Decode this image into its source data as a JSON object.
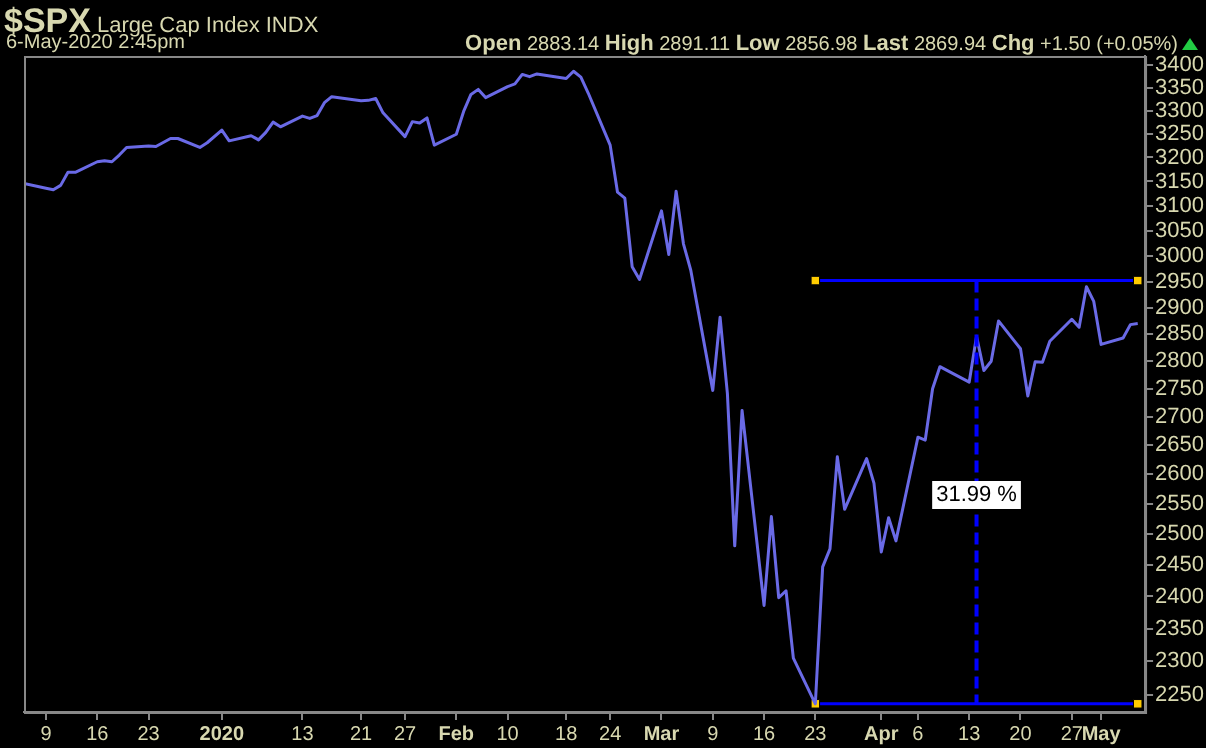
{
  "chart_data": {
    "type": "line",
    "title": "$SPX Large Cap Index INDX",
    "log": true,
    "grid": false,
    "legend": false,
    "x": [
      "2019-12-06",
      "2019-12-09",
      "2019-12-10",
      "2019-12-11",
      "2019-12-12",
      "2019-12-13",
      "2019-12-16",
      "2019-12-17",
      "2019-12-18",
      "2019-12-19",
      "2019-12-20",
      "2019-12-23",
      "2019-12-24",
      "2019-12-26",
      "2019-12-27",
      "2019-12-30",
      "2019-12-31",
      "2020-01-02",
      "2020-01-03",
      "2020-01-06",
      "2020-01-07",
      "2020-01-08",
      "2020-01-09",
      "2020-01-10",
      "2020-01-13",
      "2020-01-14",
      "2020-01-15",
      "2020-01-16",
      "2020-01-17",
      "2020-01-21",
      "2020-01-22",
      "2020-01-23",
      "2020-01-24",
      "2020-01-27",
      "2020-01-28",
      "2020-01-29",
      "2020-01-30",
      "2020-01-31",
      "2020-02-03",
      "2020-02-04",
      "2020-02-05",
      "2020-02-06",
      "2020-02-07",
      "2020-02-10",
      "2020-02-11",
      "2020-02-12",
      "2020-02-13",
      "2020-02-14",
      "2020-02-18",
      "2020-02-19",
      "2020-02-20",
      "2020-02-21",
      "2020-02-24",
      "2020-02-25",
      "2020-02-26",
      "2020-02-27",
      "2020-02-28",
      "2020-03-02",
      "2020-03-03",
      "2020-03-04",
      "2020-03-05",
      "2020-03-06",
      "2020-03-09",
      "2020-03-10",
      "2020-03-11",
      "2020-03-12",
      "2020-03-13",
      "2020-03-16",
      "2020-03-17",
      "2020-03-18",
      "2020-03-19",
      "2020-03-20",
      "2020-03-23",
      "2020-03-24",
      "2020-03-25",
      "2020-03-26",
      "2020-03-27",
      "2020-03-30",
      "2020-03-31",
      "2020-04-01",
      "2020-04-02",
      "2020-04-03",
      "2020-04-06",
      "2020-04-07",
      "2020-04-08",
      "2020-04-09",
      "2020-04-13",
      "2020-04-14",
      "2020-04-15",
      "2020-04-16",
      "2020-04-17",
      "2020-04-20",
      "2020-04-21",
      "2020-04-22",
      "2020-04-23",
      "2020-04-24",
      "2020-04-27",
      "2020-04-28",
      "2020-04-29",
      "2020-04-30",
      "2020-05-01",
      "2020-05-04",
      "2020-05-05",
      "2020-05-06"
    ],
    "series": [
      {
        "color": "#6a6ae6",
        "marker": "none",
        "values": [
          3146,
          3136,
          3133,
          3142,
          3169,
          3169,
          3191,
          3193,
          3191,
          3205,
          3221,
          3224,
          3223,
          3240,
          3240,
          3221,
          3231,
          3258,
          3235,
          3246,
          3237,
          3253,
          3275,
          3265,
          3288,
          3283,
          3289,
          3317,
          3330,
          3321,
          3322,
          3326,
          3295,
          3244,
          3276,
          3273,
          3284,
          3226,
          3249,
          3298,
          3335,
          3346,
          3328,
          3352,
          3358,
          3379,
          3374,
          3380,
          3370,
          3386,
          3373,
          3338,
          3226,
          3128,
          3116,
          2979,
          2954,
          3090,
          3003,
          3130,
          3024,
          2972,
          2747,
          2882,
          2741,
          2481,
          2711,
          2386,
          2529,
          2398,
          2409,
          2305,
          2237,
          2447,
          2476,
          2630,
          2541,
          2627,
          2585,
          2471,
          2527,
          2489,
          2664,
          2659,
          2750,
          2790,
          2762,
          2846,
          2783,
          2800,
          2875,
          2823,
          2737,
          2799,
          2798,
          2837,
          2878,
          2863,
          2940,
          2912,
          2831,
          2843,
          2868,
          2870
        ],
        "line_style": "solid"
      },
      {
        "type": "line",
        "color": "#0000ff",
        "marker": "square",
        "colors": [
          "#ffcc00",
          "#ffcc00"
        ],
        "x": [
          "2020-03-23",
          "2020-05-06"
        ],
        "values": [
          2952,
          2952
        ]
      },
      {
        "type": "line",
        "color": "#0000ff",
        "marker": "square",
        "colors": [
          "#ffcc00",
          "#ffcc00"
        ],
        "x": [
          "2020-03-23",
          "2020-05-06"
        ],
        "values": [
          2237,
          2237
        ]
      }
    ],
    "ref_lines": [
      {
        "axis": "x",
        "value": "2020-04-14",
        "color": "#0000ff",
        "line_style": "dashed"
      }
    ],
    "annotations": [
      "6-May-2020 2:45pm",
      "Open 2883.14 High 2891.11 Low 2856.98 Last 2869.94 Chg +1.50 (+0.05%)",
      {
        "text": "31.99 %",
        "x": "2020-04-14",
        "y": 2565
      }
    ],
    "xlim": [
      "2019-12-06",
      "2020-05-07"
    ],
    "xticks": [
      {
        "value": "2019-12-09",
        "label": "9"
      },
      {
        "value": "2019-12-16",
        "label": "16"
      },
      {
        "value": "2019-12-23",
        "label": "23"
      },
      {
        "value": "2020-01-02",
        "label": "2020"
      },
      {
        "value": "2020-01-13",
        "label": "13"
      },
      {
        "value": "2020-01-21",
        "label": "21"
      },
      {
        "value": "2020-01-27",
        "label": "27"
      },
      {
        "value": "2020-02-03",
        "label": "Feb"
      },
      {
        "value": "2020-02-10",
        "label": "10"
      },
      {
        "value": "2020-02-18",
        "label": "18"
      },
      {
        "value": "2020-02-24",
        "label": "24"
      },
      {
        "value": "2020-03-02",
        "label": "Mar"
      },
      {
        "value": "2020-03-09",
        "label": "9"
      },
      {
        "value": "2020-03-16",
        "label": "16"
      },
      {
        "value": "2020-03-23",
        "label": "23"
      },
      {
        "value": "2020-04-01",
        "label": "Apr"
      },
      {
        "value": "2020-04-06",
        "label": "6"
      },
      {
        "value": "2020-04-13",
        "label": "13"
      },
      {
        "value": "2020-04-20",
        "label": "20"
      },
      {
        "value": "2020-04-27",
        "label": "27"
      },
      {
        "value": "2020-05-01",
        "label": "May"
      }
    ],
    "ylim": [
      2225,
      3420
    ],
    "yticks": [
      2250,
      2300,
      2350,
      2400,
      2450,
      2500,
      2550,
      2600,
      2650,
      2700,
      2750,
      2800,
      2850,
      2900,
      2950,
      3000,
      3050,
      3100,
      3150,
      3200,
      3250,
      3300,
      3350,
      3400
    ]
  }
}
